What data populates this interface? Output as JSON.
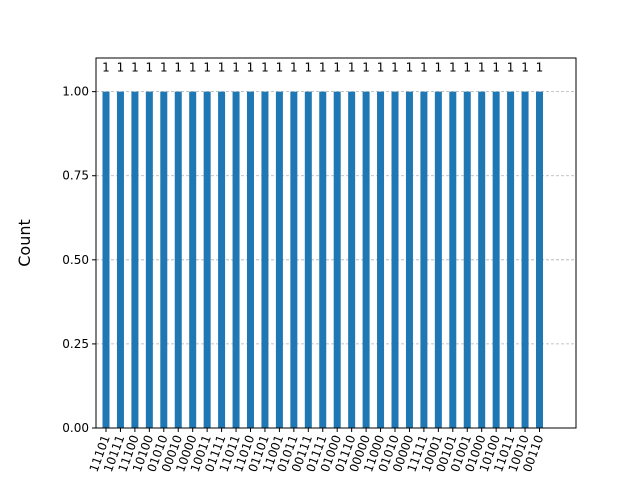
{
  "chart_data": {
    "type": "bar",
    "ylabel": "Count",
    "ylim": [
      0,
      1.1
    ],
    "yticks": [
      "0.00",
      "0.25",
      "0.50",
      "0.75",
      "1.00"
    ],
    "grid": "horizontal-dashed",
    "bar_color": "#1f77b4",
    "grid_color": "#b0b0b0",
    "categories": [
      "11101",
      "10111",
      "11100",
      "10100",
      "01010",
      "00010",
      "10000",
      "10011",
      "01111",
      "11011",
      "11010",
      "01101",
      "11001",
      "01011",
      "00111",
      "01111",
      "01000",
      "01110",
      "00000",
      "11000",
      "01010",
      "00000",
      "11111",
      "10001",
      "00101",
      "01001",
      "01000",
      "10100",
      "11011",
      "10010",
      "00110"
    ],
    "values": [
      1,
      1,
      1,
      1,
      1,
      1,
      1,
      1,
      1,
      1,
      1,
      1,
      1,
      1,
      1,
      1,
      1,
      1,
      1,
      1,
      1,
      1,
      1,
      1,
      1,
      1,
      1,
      1,
      1,
      1,
      1
    ],
    "data_labels": [
      "1",
      "1",
      "1",
      "1",
      "1",
      "1",
      "1",
      "1",
      "1",
      "1",
      "1",
      "1",
      "1",
      "1",
      "1",
      "1",
      "1",
      "1",
      "1",
      "1",
      "1",
      "1",
      "1",
      "1",
      "1",
      "1",
      "1",
      "1",
      "1",
      "1",
      "1"
    ]
  }
}
